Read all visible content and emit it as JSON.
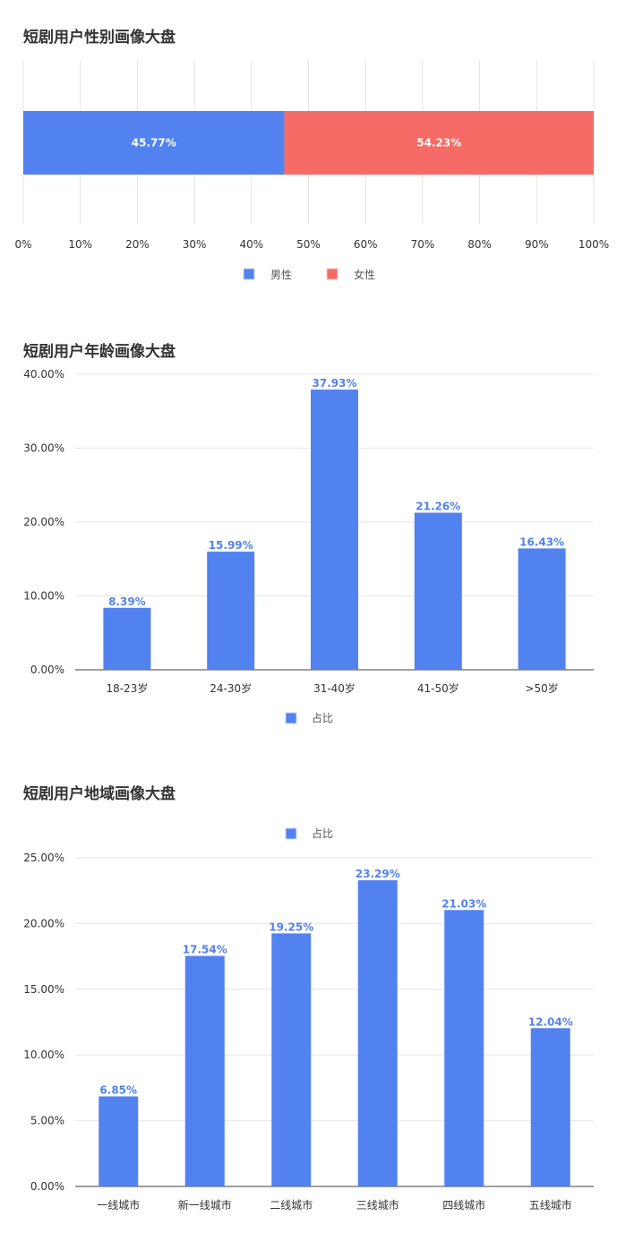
{
  "chart_data": [
    {
      "type": "bar",
      "orientation": "horizontal-stacked",
      "title": "短剧用户性别画像大盘",
      "categories": [
        ""
      ],
      "series": [
        {
          "name": "男性",
          "values": [
            45.77
          ],
          "label": "45.77%",
          "color": "#5282ef"
        },
        {
          "name": "女性",
          "values": [
            54.23
          ],
          "label": "54.23%",
          "color": "#f66b66"
        }
      ],
      "xlim": [
        0,
        100
      ],
      "x_ticks": [
        "0%",
        "10%",
        "20%",
        "30%",
        "40%",
        "50%",
        "60%",
        "70%",
        "80%",
        "90%",
        "100%"
      ],
      "grid": true,
      "legend": "bottom"
    },
    {
      "type": "bar",
      "title": "短剧用户年龄画像大盘",
      "categories": [
        "18-23岁",
        "24-30岁",
        "31-40岁",
        "41-50岁",
        ">50岁"
      ],
      "series": [
        {
          "name": "占比",
          "values": [
            8.39,
            15.99,
            37.93,
            21.26,
            16.43
          ],
          "labels": [
            "8.39%",
            "15.99%",
            "37.93%",
            "21.26%",
            "16.43%"
          ],
          "color": "#5282ef"
        }
      ],
      "ylim": [
        0,
        40
      ],
      "y_ticks": [
        "0.00%",
        "10.00%",
        "20.00%",
        "30.00%",
        "40.00%"
      ],
      "grid": true,
      "legend": "bottom"
    },
    {
      "type": "bar",
      "title": "短剧用户地域画像大盘",
      "categories": [
        "一线城市",
        "新一线城市",
        "二线城市",
        "三线城市",
        "四线城市",
        "五线城市"
      ],
      "series": [
        {
          "name": "占比",
          "values": [
            6.85,
            17.54,
            19.25,
            23.29,
            21.03,
            12.04
          ],
          "labels": [
            "6.85%",
            "17.54%",
            "19.25%",
            "23.29%",
            "21.03%",
            "12.04%"
          ],
          "color": "#5282ef"
        }
      ],
      "ylim": [
        0,
        25
      ],
      "y_ticks": [
        "0.00%",
        "5.00%",
        "10.00%",
        "15.00%",
        "20.00%",
        "25.00%"
      ],
      "grid": true,
      "legend": "top"
    }
  ]
}
